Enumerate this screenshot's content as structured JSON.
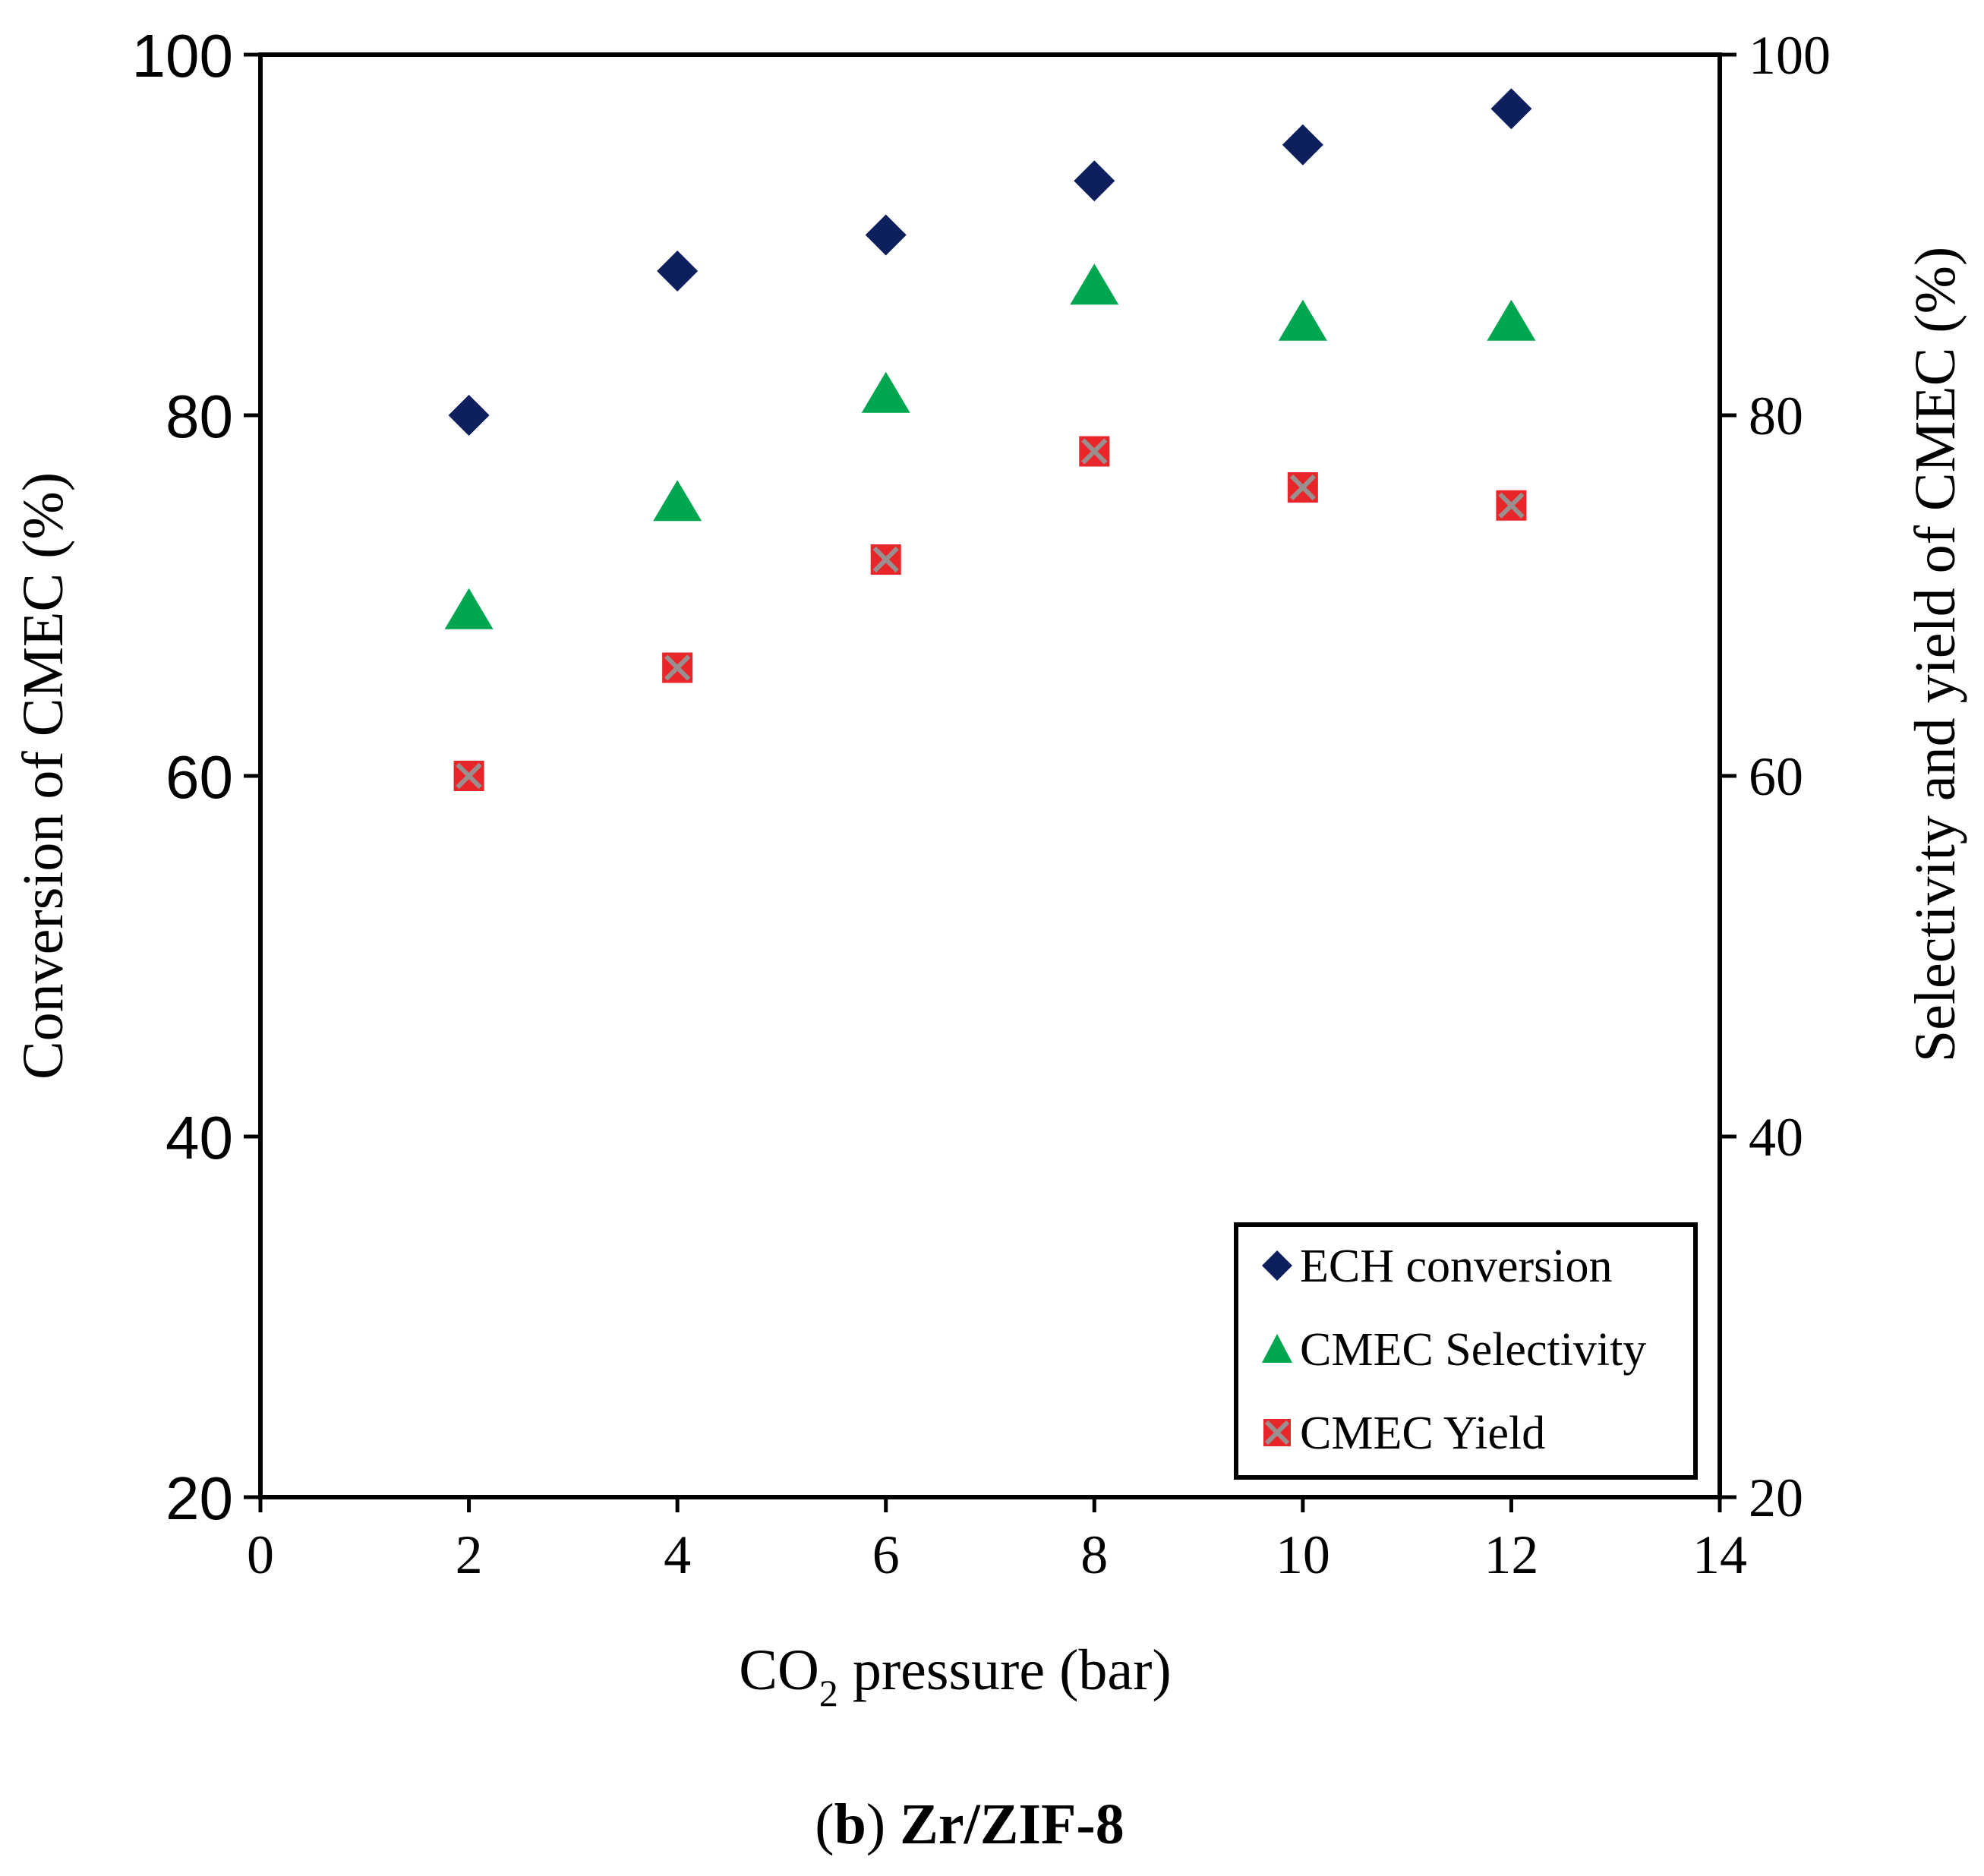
{
  "chart_data": {
    "type": "scatter",
    "x": [
      2,
      4,
      6,
      8,
      10,
      12
    ],
    "series": [
      {
        "name": "ECH conversion",
        "axis": "left",
        "marker": "diamond",
        "color": "#0d1f5c",
        "values": [
          80,
          88,
          90,
          93,
          95,
          97
        ]
      },
      {
        "name": "CMEC Selectivity",
        "axis": "right",
        "marker": "triangle",
        "color": "#00a650",
        "values": [
          69,
          75,
          81,
          87,
          85,
          85
        ]
      },
      {
        "name": "CMEC Yield",
        "axis": "right",
        "marker": "square-x",
        "color": "#e8262a",
        "values": [
          60,
          66,
          72,
          78,
          76,
          75
        ]
      }
    ],
    "xlim": [
      0,
      14
    ],
    "xticks": [
      "0",
      "2",
      "4",
      "6",
      "8",
      "10",
      "12",
      "14"
    ],
    "ylim_left": [
      20,
      100
    ],
    "yticks_left": [
      "20",
      "40",
      "60",
      "80",
      "100"
    ],
    "ylim_right": [
      20,
      100
    ],
    "yticks_right": [
      "20",
      "40",
      "60",
      "80",
      "100"
    ],
    "xlabel_main": "CO",
    "xlabel_sub": "2",
    "xlabel_rest": " pressure (bar)",
    "ylabel_left": "Conversion of CMEC (%)",
    "ylabel_right": "Selectivity and yield of CMEC (%)",
    "legend_position": "bottom-right",
    "grid": false
  },
  "caption": {
    "open_paren": "(",
    "letter": "b",
    "close_paren": ")",
    "title": " Zr/ZIF-8"
  }
}
